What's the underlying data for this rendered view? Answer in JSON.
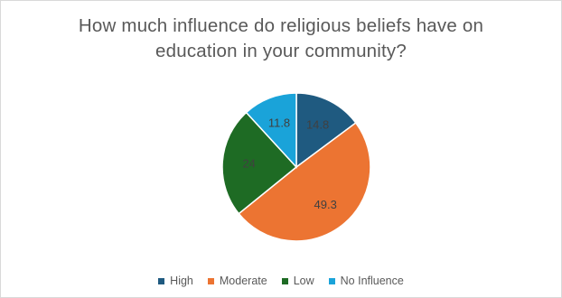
{
  "chart_data": {
    "type": "pie",
    "title_lines": [
      "How much influence do religious beliefs have on",
      "education in your community?"
    ],
    "categories": [
      "High",
      "Moderate",
      "Low",
      "No Influence"
    ],
    "values": [
      14.8,
      49.3,
      24,
      11.8
    ],
    "data_labels": [
      "14.8",
      "49.3",
      "24",
      "11.8"
    ],
    "colors": [
      "#1f5a80",
      "#ec7432",
      "#1e6b24",
      "#1aa3d9"
    ],
    "legend_position": "bottom",
    "start_angle": "12 o'clock, clockwise"
  }
}
